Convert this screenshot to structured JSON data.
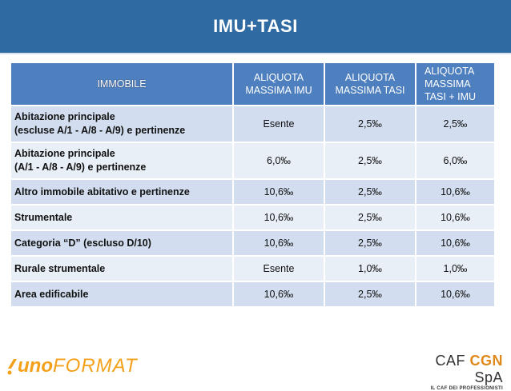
{
  "slide": {
    "title": "IMU+TASI"
  },
  "table": {
    "headers": [
      "IMMOBILE",
      "ALIQUOTA\nMASSIMA IMU",
      "ALIQUOTA\nMASSIMA TASI",
      "ALIQUOTA\nMASSIMA\nTASI + IMU"
    ],
    "rows": [
      {
        "name": "Abitazione principale\n(escluse A/1 - A/8 - A/9) e pertinenze",
        "imu": "Esente",
        "tasi": "2,5‰",
        "total": "2,5‰"
      },
      {
        "name": "Abitazione principale\n(A/1 - A/8 - A/9) e pertinenze",
        "imu": "6,0‰",
        "tasi": "2,5‰",
        "total": "6,0‰"
      },
      {
        "name": "Altro immobile abitativo e pertinenze",
        "imu": "10,6‰",
        "tasi": "2,5‰",
        "total": "10,6‰"
      },
      {
        "name": "Strumentale",
        "imu": "10,6‰",
        "tasi": "2,5‰",
        "total": "10,6‰"
      },
      {
        "name": "Categoria “D” (escluso D/10)",
        "imu": "10,6‰",
        "tasi": "2,5‰",
        "total": "10,6‰"
      },
      {
        "name": "Rurale strumentale",
        "imu": "Esente",
        "tasi": "1,0‰",
        "total": "1,0‰"
      },
      {
        "name": "Area edificabile",
        "imu": "10,6‰",
        "tasi": "2,5‰",
        "total": "10,6‰"
      }
    ]
  },
  "logos": {
    "left_uno": "uno",
    "left_format": "FORMAT",
    "right_caf": "CAF",
    "right_cgn": "CGN",
    "right_spa": "SpA",
    "right_tagline": "IL CAF DEI PROFESSIONISTI"
  },
  "colors": {
    "title_bar": "#2f6aa3",
    "header": "#4e7fbe",
    "row_odd": "#d2def0",
    "row_even": "#e9eff7",
    "brand_orange": "#f3a01a"
  }
}
